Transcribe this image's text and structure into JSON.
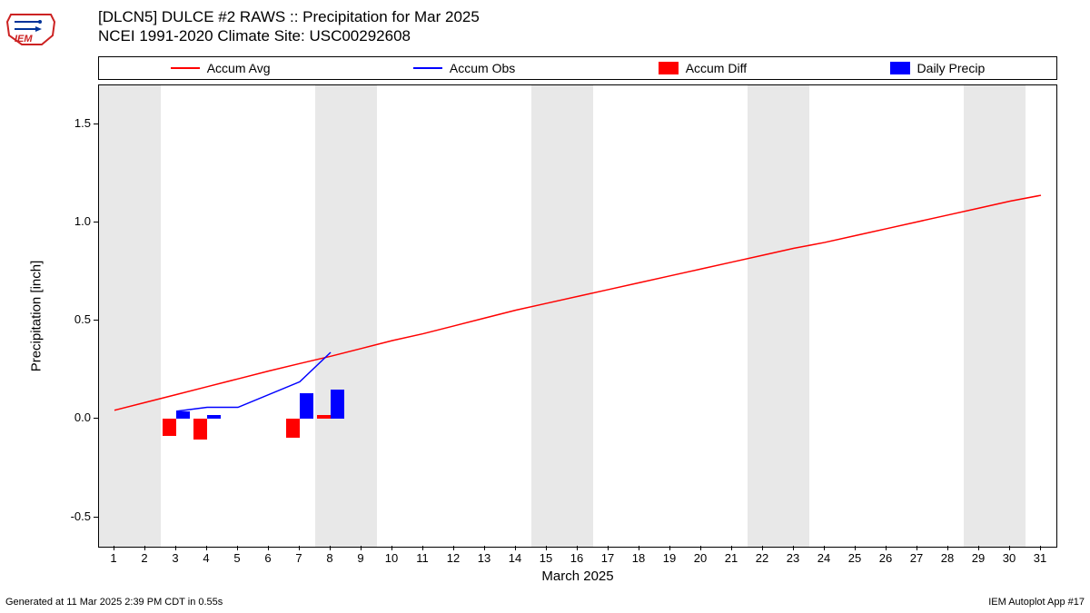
{
  "title_line1": "[DLCN5] DULCE #2 RAWS :: Precipitation for Mar 2025",
  "title_line2": "NCEI 1991-2020 Climate Site: USC00292608",
  "ylabel": "Precipitation [inch]",
  "xlabel": "March 2025",
  "footer_left": "Generated at 11 Mar 2025 2:39 PM CDT in 0.55s",
  "footer_right": "IEM Autoplot App #17",
  "legend": [
    {
      "type": "line",
      "color": "#ff0000",
      "label": "Accum Avg"
    },
    {
      "type": "line",
      "color": "#0000ff",
      "label": "Accum Obs"
    },
    {
      "type": "box",
      "color": "#ff0000",
      "label": "Accum Diff"
    },
    {
      "type": "box",
      "color": "#0000ff",
      "label": "Daily Precip"
    }
  ],
  "chart": {
    "background": "#ffffff",
    "grid_color": "#e8e8e8",
    "xlim": [
      0.5,
      31.5
    ],
    "ylim": [
      -0.65,
      1.7
    ],
    "yticks": [
      -0.5,
      0.0,
      0.5,
      1.0,
      1.5
    ],
    "xticks": [
      1,
      2,
      3,
      4,
      5,
      6,
      7,
      8,
      9,
      10,
      11,
      12,
      13,
      14,
      15,
      16,
      17,
      18,
      19,
      20,
      21,
      22,
      23,
      24,
      25,
      26,
      27,
      28,
      29,
      30,
      31
    ],
    "weekend_bands": [
      [
        1,
        2
      ],
      [
        8,
        9
      ],
      [
        15,
        16
      ],
      [
        22,
        23
      ],
      [
        29,
        30
      ]
    ],
    "accum_avg": {
      "color": "#ff0000",
      "width": 1.5,
      "x": [
        1,
        2,
        3,
        4,
        5,
        6,
        7,
        8,
        9,
        10,
        11,
        12,
        13,
        14,
        15,
        16,
        17,
        18,
        19,
        20,
        21,
        22,
        23,
        24,
        25,
        26,
        27,
        28,
        29,
        30,
        31
      ],
      "y": [
        0.045,
        0.085,
        0.125,
        0.165,
        0.205,
        0.245,
        0.283,
        0.32,
        0.36,
        0.4,
        0.435,
        0.475,
        0.515,
        0.555,
        0.59,
        0.625,
        0.66,
        0.695,
        0.73,
        0.765,
        0.8,
        0.835,
        0.87,
        0.9,
        0.935,
        0.97,
        1.005,
        1.04,
        1.075,
        1.11,
        1.14
      ]
    },
    "accum_obs": {
      "color": "#0000ff",
      "width": 1.5,
      "x": [
        3,
        4,
        5,
        7,
        8
      ],
      "y": [
        0.04,
        0.06,
        0.06,
        0.19,
        0.34
      ]
    },
    "daily_precip": {
      "color": "#0000ff",
      "bar_width": 0.45,
      "x": [
        3,
        4,
        7,
        8
      ],
      "y": [
        0.04,
        0.02,
        0.13,
        0.15
      ]
    },
    "accum_diff": {
      "color": "#ff0000",
      "bar_width": 0.45,
      "x": [
        3,
        4,
        7,
        8
      ],
      "y": [
        -0.085,
        -0.105,
        -0.093,
        0.02
      ]
    }
  }
}
